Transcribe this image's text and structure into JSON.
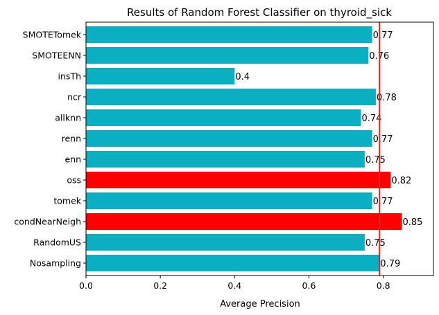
{
  "chart_data": {
    "type": "bar",
    "orientation": "horizontal",
    "title": "Results of Random Forest Classifier on thyroid_sick",
    "xlabel": "Average Precision",
    "ylabel": "",
    "categories": [
      "Nosampling",
      "RandomUS",
      "condNearNeigh",
      "tomek",
      "oss",
      "enn",
      "renn",
      "allknn",
      "ncr",
      "insTh",
      "SMOTEENN",
      "SMOTETomek"
    ],
    "values": [
      0.79,
      0.75,
      0.85,
      0.77,
      0.82,
      0.75,
      0.77,
      0.74,
      0.78,
      0.4,
      0.76,
      0.77
    ],
    "value_labels": [
      "0.79",
      "0.75",
      "0.85",
      "0.77",
      "0.82",
      "0.75",
      "0.77",
      "0.74",
      "0.78",
      "0.4",
      "0.76",
      "0.77"
    ],
    "bar_colors": [
      "#0aafc2",
      "#0aafc2",
      "#ff0000",
      "#0aafc2",
      "#ff0000",
      "#0aafc2",
      "#0aafc2",
      "#0aafc2",
      "#0aafc2",
      "#0aafc2",
      "#0aafc2",
      "#0aafc2"
    ],
    "reference_line": {
      "x": 0.79,
      "color": "#d62728"
    },
    "xlim": [
      0,
      0.935
    ],
    "xticks": [
      0.0,
      0.2,
      0.4,
      0.6,
      0.8
    ],
    "xtick_labels": [
      "0.0",
      "0.2",
      "0.4",
      "0.6",
      "0.8"
    ],
    "grid": false,
    "legend": "none"
  }
}
